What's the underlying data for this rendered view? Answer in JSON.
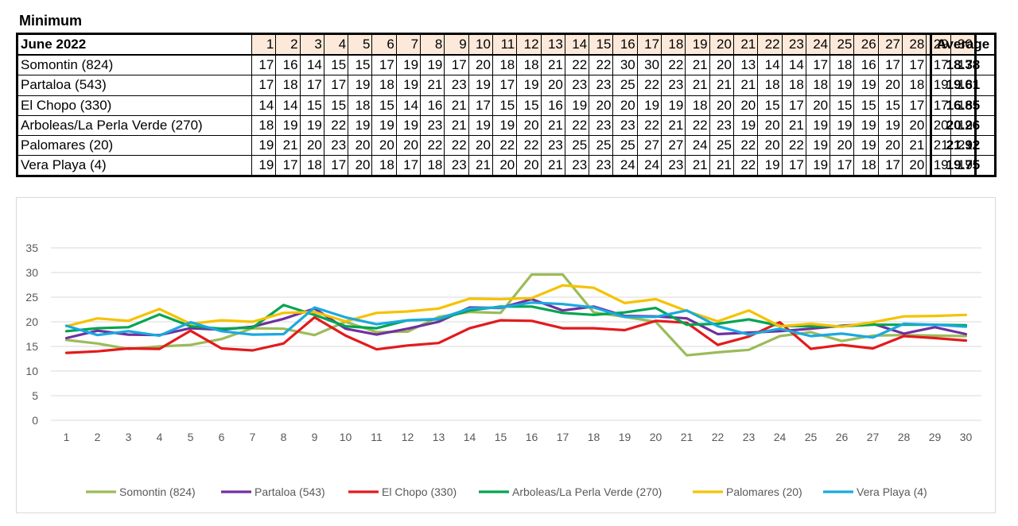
{
  "heading": "Minimum",
  "table": {
    "corner": "June 2022",
    "avg_header": "Average",
    "days": [
      "1",
      "2",
      "3",
      "4",
      "5",
      "6",
      "7",
      "8",
      "9",
      "10",
      "11",
      "12",
      "13",
      "14",
      "15",
      "16",
      "17",
      "18",
      "19",
      "20",
      "21",
      "22",
      "23",
      "24",
      "25",
      "26",
      "27",
      "28",
      "29",
      "30"
    ],
    "rows": [
      {
        "name": "Somontin (824)",
        "values": [
          17,
          16,
          14,
          15,
          15,
          17,
          19,
          19,
          17,
          20,
          18,
          18,
          21,
          22,
          22,
          30,
          30,
          22,
          21,
          20,
          13,
          14,
          14,
          17,
          18,
          16,
          17,
          17,
          17,
          17
        ],
        "average": "18.38"
      },
      {
        "name": "Partaloa (543)",
        "values": [
          17,
          18,
          17,
          17,
          19,
          18,
          19,
          21,
          23,
          19,
          17,
          19,
          20,
          23,
          23,
          25,
          22,
          23,
          21,
          21,
          21,
          18,
          18,
          18,
          19,
          19,
          20,
          18,
          19,
          18
        ],
        "average": "19.61"
      },
      {
        "name": "El Chopo (330)",
        "values": [
          14,
          14,
          15,
          15,
          18,
          15,
          14,
          16,
          21,
          17,
          15,
          15,
          16,
          19,
          20,
          20,
          19,
          19,
          18,
          20,
          20,
          15,
          17,
          20,
          15,
          15,
          15,
          17,
          17,
          16
        ],
        "average": "16.85"
      },
      {
        "name": "Arboleas/La Perla Verde (270)",
        "values": [
          18,
          19,
          19,
          22,
          19,
          19,
          19,
          23,
          21,
          19,
          19,
          20,
          21,
          22,
          23,
          23,
          22,
          21,
          22,
          23,
          19,
          20,
          21,
          19,
          19,
          19,
          19,
          20,
          20,
          19
        ],
        "average": "20.26"
      },
      {
        "name": "Palomares (20)",
        "values": [
          19,
          21,
          20,
          23,
          20,
          20,
          20,
          22,
          22,
          20,
          22,
          22,
          23,
          25,
          25,
          25,
          27,
          27,
          24,
          25,
          22,
          20,
          22,
          19,
          20,
          19,
          20,
          21,
          21,
          21
        ],
        "average": "21.92"
      },
      {
        "name": "Vera Playa (4)",
        "values": [
          19,
          17,
          18,
          17,
          20,
          18,
          17,
          18,
          23,
          21,
          20,
          20,
          21,
          23,
          23,
          24,
          24,
          23,
          21,
          21,
          22,
          19,
          17,
          19,
          17,
          18,
          17,
          20,
          19,
          19
        ],
        "average": "19.75"
      }
    ]
  },
  "chart_data": {
    "type": "line",
    "title": "",
    "xlabel": "",
    "ylabel": "",
    "x": [
      1,
      2,
      3,
      4,
      5,
      6,
      7,
      8,
      9,
      10,
      11,
      12,
      13,
      14,
      15,
      16,
      17,
      18,
      19,
      20,
      21,
      22,
      23,
      24,
      25,
      26,
      27,
      28,
      29,
      30
    ],
    "ylim": [
      0,
      35
    ],
    "yticks": [
      0,
      5,
      10,
      15,
      20,
      25,
      30,
      35
    ],
    "grid": true,
    "legend_position": "bottom",
    "series": [
      {
        "name": "Somontin (824)",
        "color": "#9bbb59",
        "values": [
          16.3,
          15.6,
          14.5,
          15.0,
          15.3,
          16.5,
          18.7,
          18.6,
          17.3,
          20.0,
          17.9,
          18.0,
          21.0,
          22.0,
          21.8,
          29.6,
          29.6,
          21.9,
          21.0,
          20.0,
          13.2,
          13.8,
          14.3,
          17.1,
          17.9,
          16.1,
          17.2,
          17.3,
          17.2,
          17.1
        ]
      },
      {
        "name": "Partaloa (543)",
        "color": "#7030a0",
        "values": [
          16.7,
          18.2,
          17.4,
          17.3,
          18.7,
          18.4,
          19.0,
          20.6,
          22.7,
          18.6,
          17.4,
          18.6,
          20.0,
          22.9,
          22.8,
          24.6,
          22.3,
          23.1,
          21.2,
          21.1,
          20.7,
          17.5,
          17.8,
          18.1,
          18.6,
          19.2,
          19.6,
          17.6,
          18.9,
          17.5
        ]
      },
      {
        "name": "El Chopo (330)",
        "color": "#e31a1c",
        "values": [
          13.7,
          14.0,
          14.6,
          14.5,
          18.2,
          14.6,
          14.2,
          15.6,
          20.9,
          17.2,
          14.4,
          15.2,
          15.7,
          18.7,
          20.3,
          20.2,
          18.7,
          18.7,
          18.3,
          20.2,
          19.8,
          15.3,
          17.0,
          19.9,
          14.5,
          15.3,
          14.6,
          17.1,
          16.7,
          16.2
        ]
      },
      {
        "name": "Arboleas/La Perla Verde (270)",
        "color": "#00a550",
        "values": [
          18.1,
          18.7,
          18.9,
          21.5,
          19.1,
          18.6,
          18.8,
          23.4,
          21.4,
          19.1,
          18.7,
          20.3,
          20.5,
          22.3,
          23.1,
          23.1,
          21.8,
          21.4,
          21.9,
          22.8,
          19.4,
          19.6,
          20.5,
          19.2,
          19.1,
          19.1,
          19.4,
          19.4,
          19.4,
          19.3
        ]
      },
      {
        "name": "Palomares (20)",
        "color": "#f5c200",
        "values": [
          19.1,
          20.7,
          20.2,
          22.6,
          19.6,
          20.3,
          20.0,
          21.8,
          22.0,
          20.1,
          21.8,
          22.1,
          22.7,
          24.7,
          24.6,
          24.8,
          27.4,
          26.9,
          23.8,
          24.6,
          22.2,
          20.1,
          22.3,
          19.1,
          19.6,
          19.0,
          19.9,
          21.1,
          21.2,
          21.4
        ]
      },
      {
        "name": "Vera Playa (4)",
        "color": "#1aa9e0",
        "values": [
          19.2,
          17.3,
          18.1,
          17.2,
          19.9,
          18.1,
          17.4,
          17.5,
          22.9,
          20.9,
          19.5,
          20.3,
          20.6,
          22.7,
          22.9,
          23.9,
          23.6,
          22.9,
          21.0,
          21.0,
          22.3,
          19.1,
          17.4,
          18.6,
          17.1,
          17.6,
          16.8,
          19.6,
          19.4,
          19.0
        ]
      }
    ]
  }
}
